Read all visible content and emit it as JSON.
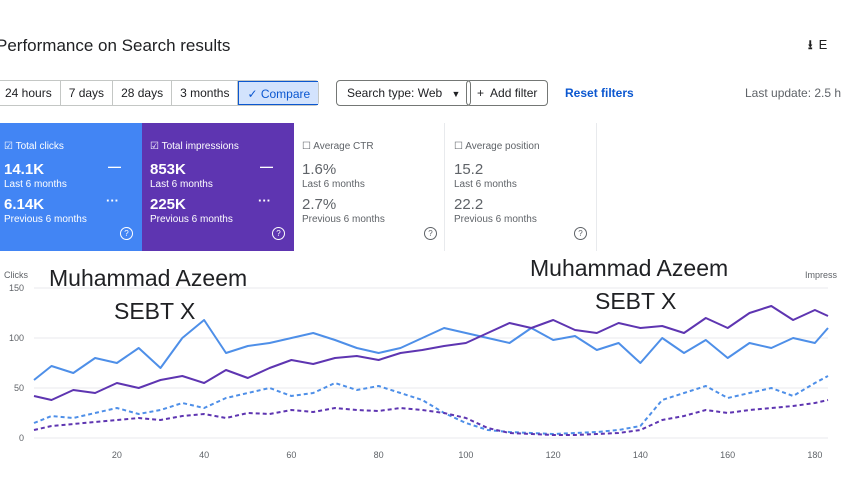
{
  "header": {
    "title": "Performance on Search results",
    "export_label": "E",
    "export_icon": "download-icon"
  },
  "filters": {
    "ranges": [
      "24 hours",
      "7 days",
      "28 days",
      "3 months"
    ],
    "compare_label": "✓ Compare",
    "search_type": "Search type: Web",
    "add_filter": "Add filter",
    "reset": "Reset filters",
    "last_update": "Last update: 2.5 h"
  },
  "metrics": [
    {
      "label": "Total clicks",
      "value": "14.1K",
      "period": "Last 6 months",
      "prev_value": "6.14K",
      "prev_period": "Previous 6 months",
      "checked": true,
      "color": "#4285f4"
    },
    {
      "label": "Total impressions",
      "value": "853K",
      "period": "Last 6 months",
      "prev_value": "225K",
      "prev_period": "Previous 6 months",
      "checked": true,
      "color": "#5e35b1"
    },
    {
      "label": "Average CTR",
      "value": "1.6%",
      "period": "Last 6 months",
      "prev_value": "2.7%",
      "prev_period": "Previous 6 months",
      "checked": false
    },
    {
      "label": "Average position",
      "value": "15.2",
      "period": "Last 6 months",
      "prev_value": "22.2",
      "prev_period": "Previous 6 months",
      "checked": false
    }
  ],
  "watermarks": {
    "left_line1": "Muhammad Azeem",
    "left_line2": "SEBT X",
    "right_line1": "Muhammad Azeem",
    "right_line2": "SEBT X"
  },
  "chart_data": {
    "type": "line",
    "ylabel_left": "Clicks",
    "ylabel_right": "Impress",
    "yticks": [
      "150",
      "100",
      "50",
      "0"
    ],
    "xticks": [
      "20",
      "40",
      "60",
      "80",
      "100",
      "120",
      "140",
      "160",
      "180"
    ],
    "ylim": [
      0,
      150
    ],
    "xlim": [
      1,
      183
    ],
    "x": [
      1,
      5,
      10,
      15,
      20,
      25,
      30,
      35,
      40,
      45,
      50,
      55,
      60,
      65,
      70,
      75,
      80,
      85,
      90,
      95,
      100,
      105,
      110,
      115,
      120,
      125,
      130,
      135,
      140,
      145,
      150,
      155,
      160,
      165,
      170,
      175,
      180,
      183
    ],
    "series": [
      {
        "name": "Clicks (last 6 months)",
        "color": "#4e8fe8",
        "dashed": false,
        "values": [
          58,
          72,
          65,
          80,
          75,
          90,
          70,
          100,
          118,
          85,
          92,
          95,
          100,
          105,
          98,
          90,
          85,
          90,
          100,
          110,
          105,
          100,
          95,
          110,
          98,
          102,
          88,
          95,
          75,
          100,
          85,
          98,
          80,
          95,
          90,
          100,
          95,
          110
        ]
      },
      {
        "name": "Impressions (last 6 months)",
        "color": "#5e35b1",
        "dashed": false,
        "values": [
          42,
          38,
          48,
          45,
          55,
          50,
          58,
          62,
          55,
          68,
          60,
          70,
          78,
          74,
          80,
          82,
          78,
          85,
          88,
          92,
          95,
          105,
          115,
          110,
          118,
          108,
          105,
          115,
          110,
          112,
          105,
          120,
          110,
          125,
          132,
          118,
          128,
          122
        ]
      },
      {
        "name": "Clicks (previous 6 months)",
        "color": "#4e8fe8",
        "dashed": true,
        "values": [
          15,
          22,
          20,
          25,
          30,
          24,
          28,
          35,
          30,
          40,
          45,
          50,
          42,
          45,
          55,
          48,
          52,
          45,
          38,
          25,
          15,
          8,
          6,
          5,
          4,
          5,
          6,
          8,
          12,
          38,
          45,
          52,
          40,
          45,
          50,
          42,
          55,
          62
        ]
      },
      {
        "name": "Impressions (previous 6 months)",
        "color": "#5e35b1",
        "dashed": true,
        "values": [
          8,
          12,
          14,
          16,
          18,
          20,
          18,
          22,
          24,
          20,
          25,
          24,
          28,
          26,
          30,
          28,
          27,
          30,
          28,
          25,
          20,
          10,
          5,
          4,
          3,
          3,
          4,
          5,
          8,
          18,
          22,
          28,
          25,
          28,
          30,
          32,
          35,
          38
        ]
      }
    ]
  }
}
